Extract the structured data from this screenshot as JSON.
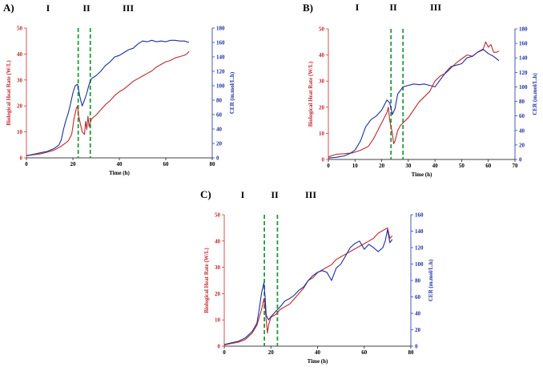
{
  "colors": {
    "heat": "#c0282d",
    "cer": "#1c2fa0",
    "phase_line": "#1f9a3a",
    "axis": "#000000"
  },
  "chart_data": [
    {
      "panel": "A)",
      "type": "line",
      "phase_labels": [
        "I",
        "II",
        "III"
      ],
      "phase_boundaries_h": [
        22.3,
        27.5
      ],
      "xlabel": "Time (h)",
      "ylabel_left": "Biological Heat Rate (W/L)",
      "ylabel_right": "CER (m.mol/L.h)",
      "xlim": [
        0,
        80
      ],
      "ylim_left": [
        0,
        50
      ],
      "ylim_right": [
        0,
        180
      ],
      "x_ticks": [
        "0",
        "20",
        "40",
        "60",
        "80"
      ],
      "y_left_ticks": [
        "0",
        "10",
        "20",
        "30",
        "40",
        "50"
      ],
      "y_right_ticks": [
        "0",
        "20",
        "40",
        "60",
        "80",
        "100",
        "120",
        "140",
        "160",
        "180"
      ],
      "series": [
        {
          "axis": "left",
          "color": "heat",
          "points": [
            [
              0,
              0.8
            ],
            [
              3,
              1.2
            ],
            [
              6,
              1.5
            ],
            [
              9,
              2.2
            ],
            [
              12,
              3.0
            ],
            [
              15,
              4.5
            ],
            [
              18,
              6.5
            ],
            [
              19.5,
              9
            ],
            [
              20.5,
              15
            ],
            [
              21.5,
              19
            ],
            [
              22,
              20
            ],
            [
              22.5,
              16
            ],
            [
              23,
              14
            ],
            [
              24,
              10
            ],
            [
              25,
              9
            ],
            [
              25.5,
              14
            ],
            [
              26,
              11
            ],
            [
              26.5,
              16
            ],
            [
              27,
              12
            ],
            [
              28,
              15
            ],
            [
              30,
              16.5
            ],
            [
              32,
              18.5
            ],
            [
              34,
              20.5
            ],
            [
              36,
              22
            ],
            [
              38,
              24
            ],
            [
              40,
              25.5
            ],
            [
              42,
              26.5
            ],
            [
              44,
              28
            ],
            [
              46,
              29.5
            ],
            [
              48,
              30.5
            ],
            [
              50,
              31.5
            ],
            [
              52,
              32.5
            ],
            [
              54,
              33.5
            ],
            [
              56,
              35
            ],
            [
              58,
              36
            ],
            [
              60,
              37
            ],
            [
              62,
              37.5
            ],
            [
              64,
              38.5
            ],
            [
              66,
              39
            ],
            [
              68,
              39.5
            ],
            [
              69,
              40
            ],
            [
              70,
              41
            ]
          ]
        },
        {
          "axis": "right",
          "color": "cer",
          "points": [
            [
              0,
              3
            ],
            [
              3,
              5
            ],
            [
              6,
              7
            ],
            [
              9,
              9
            ],
            [
              12,
              13
            ],
            [
              14,
              18
            ],
            [
              15,
              25
            ],
            [
              16,
              40
            ],
            [
              17,
              52
            ],
            [
              18,
              62
            ],
            [
              19,
              75
            ],
            [
              20,
              90
            ],
            [
              21,
              100
            ],
            [
              22,
              102
            ],
            [
              23,
              85
            ],
            [
              24,
              72
            ],
            [
              25,
              80
            ],
            [
              26,
              90
            ],
            [
              27,
              102
            ],
            [
              28,
              110
            ],
            [
              30,
              114
            ],
            [
              32,
              120
            ],
            [
              34,
              128
            ],
            [
              36,
              133
            ],
            [
              38,
              140
            ],
            [
              40,
              142
            ],
            [
              42,
              146
            ],
            [
              44,
              150
            ],
            [
              46,
              152
            ],
            [
              48,
              158
            ],
            [
              50,
              162
            ],
            [
              52,
              161
            ],
            [
              54,
              163
            ],
            [
              56,
              161
            ],
            [
              58,
              162
            ],
            [
              60,
              161
            ],
            [
              62,
              163
            ],
            [
              64,
              163
            ],
            [
              66,
              162
            ],
            [
              68,
              162
            ],
            [
              70,
              160
            ]
          ]
        }
      ]
    },
    {
      "panel": "B)",
      "type": "line",
      "phase_labels": [
        "I",
        "II",
        "III"
      ],
      "phase_boundaries_h": [
        23.5,
        28
      ],
      "xlabel": "Time (h)",
      "ylabel_left": "Biological Heat Rate (W/L)",
      "ylabel_right": "CER (m.mol/L.h)",
      "xlim": [
        0,
        70
      ],
      "ylim_left": [
        0,
        50
      ],
      "ylim_right": [
        0,
        180
      ],
      "x_ticks": [
        "0",
        "10",
        "20",
        "30",
        "40",
        "50",
        "60",
        "70"
      ],
      "y_left_ticks": [
        "0",
        "10",
        "20",
        "30",
        "40",
        "50"
      ],
      "y_right_ticks": [
        "0",
        "20",
        "40",
        "60",
        "80",
        "100",
        "120",
        "140",
        "160",
        "180"
      ],
      "series": [
        {
          "axis": "left",
          "color": "heat",
          "points": [
            [
              0,
              1
            ],
            [
              3,
              2
            ],
            [
              6,
              2.2
            ],
            [
              9,
              2.5
            ],
            [
              12,
              3.5
            ],
            [
              15,
              5
            ],
            [
              17,
              8
            ],
            [
              19,
              12
            ],
            [
              21,
              16
            ],
            [
              22,
              18
            ],
            [
              22.5,
              20
            ],
            [
              23,
              15
            ],
            [
              24,
              10
            ],
            [
              24.5,
              6
            ],
            [
              25,
              7
            ],
            [
              26,
              11
            ],
            [
              27,
              13
            ],
            [
              28,
              14
            ],
            [
              30,
              16
            ],
            [
              32,
              19
            ],
            [
              34,
              22
            ],
            [
              36,
              24
            ],
            [
              38,
              26
            ],
            [
              40,
              30
            ],
            [
              42,
              32
            ],
            [
              44,
              33
            ],
            [
              46,
              35
            ],
            [
              48,
              37
            ],
            [
              50,
              38.5
            ],
            [
              52,
              40
            ],
            [
              54,
              39.5
            ],
            [
              56,
              41
            ],
            [
              58,
              42
            ],
            [
              59,
              45
            ],
            [
              60,
              43
            ],
            [
              61,
              44
            ],
            [
              62,
              41
            ],
            [
              63,
              41
            ],
            [
              64,
              41.5
            ]
          ]
        },
        {
          "axis": "right",
          "color": "cer",
          "points": [
            [
              0,
              2
            ],
            [
              3,
              3
            ],
            [
              6,
              5
            ],
            [
              8,
              8
            ],
            [
              10,
              13
            ],
            [
              12,
              25
            ],
            [
              14,
              45
            ],
            [
              16,
              55
            ],
            [
              18,
              60
            ],
            [
              20,
              68
            ],
            [
              22,
              82
            ],
            [
              23,
              78
            ],
            [
              24,
              62
            ],
            [
              25,
              70
            ],
            [
              26,
              90
            ],
            [
              28,
              100
            ],
            [
              30,
              102
            ],
            [
              32,
              104
            ],
            [
              34,
              103
            ],
            [
              36,
              104
            ],
            [
              38,
              102
            ],
            [
              40,
              100
            ],
            [
              42,
              110
            ],
            [
              44,
              120
            ],
            [
              46,
              128
            ],
            [
              48,
              130
            ],
            [
              50,
              132
            ],
            [
              52,
              140
            ],
            [
              54,
              142
            ],
            [
              56,
              148
            ],
            [
              58,
              152
            ],
            [
              60,
              146
            ],
            [
              62,
              142
            ],
            [
              64,
              136
            ]
          ]
        }
      ]
    },
    {
      "panel": "C)",
      "type": "line",
      "phase_labels": [
        "I",
        "II",
        "III"
      ],
      "phase_boundaries_h": [
        17.2,
        22.8
      ],
      "xlabel": "Time (h)",
      "ylabel_left": "Biological Heat Rate (W/L)",
      "ylabel_right": "CER (m.mol/L.h)",
      "xlim": [
        0,
        80
      ],
      "ylim_left": [
        0,
        50
      ],
      "ylim_right": [
        0,
        160
      ],
      "x_ticks": [
        "0",
        "20",
        "40",
        "60",
        "80"
      ],
      "y_left_ticks": [
        "0",
        "10",
        "20",
        "30",
        "40",
        "50"
      ],
      "y_right_ticks": [
        "0",
        "20",
        "40",
        "60",
        "80",
        "100",
        "120",
        "140",
        "160"
      ],
      "series": [
        {
          "axis": "left",
          "color": "heat",
          "points": [
            [
              0,
              0.5
            ],
            [
              3,
              1
            ],
            [
              6,
              1.5
            ],
            [
              9,
              2.5
            ],
            [
              12,
              5
            ],
            [
              14,
              8
            ],
            [
              15,
              11
            ],
            [
              16,
              14
            ],
            [
              17,
              18
            ],
            [
              17.5,
              15
            ],
            [
              18,
              10
            ],
            [
              18.5,
              5
            ],
            [
              19,
              8
            ],
            [
              20,
              11
            ],
            [
              22,
              12
            ],
            [
              24,
              14
            ],
            [
              26,
              15
            ],
            [
              28,
              16
            ],
            [
              30,
              18
            ],
            [
              32,
              20
            ],
            [
              34,
              22
            ],
            [
              36,
              25
            ],
            [
              38,
              26
            ],
            [
              40,
              28
            ],
            [
              42,
              29
            ],
            [
              44,
              30
            ],
            [
              46,
              31
            ],
            [
              48,
              33
            ],
            [
              50,
              34
            ],
            [
              52,
              35
            ],
            [
              54,
              36
            ],
            [
              56,
              37
            ],
            [
              58,
              38
            ],
            [
              60,
              39
            ],
            [
              62,
              40
            ],
            [
              64,
              41
            ],
            [
              66,
              43
            ],
            [
              68,
              44
            ],
            [
              70,
              45
            ],
            [
              71,
              41
            ],
            [
              72,
              42
            ]
          ]
        },
        {
          "axis": "right",
          "color": "cer",
          "points": [
            [
              0,
              2
            ],
            [
              3,
              4
            ],
            [
              6,
              6
            ],
            [
              9,
              10
            ],
            [
              12,
              18
            ],
            [
              14,
              28
            ],
            [
              15,
              45
            ],
            [
              16,
              65
            ],
            [
              17,
              77
            ],
            [
              17.5,
              60
            ],
            [
              18,
              38
            ],
            [
              19,
              32
            ],
            [
              20,
              36
            ],
            [
              22,
              42
            ],
            [
              24,
              48
            ],
            [
              26,
              55
            ],
            [
              28,
              58
            ],
            [
              30,
              62
            ],
            [
              32,
              68
            ],
            [
              34,
              72
            ],
            [
              36,
              80
            ],
            [
              38,
              86
            ],
            [
              40,
              90
            ],
            [
              42,
              92
            ],
            [
              44,
              90
            ],
            [
              46,
              80
            ],
            [
              48,
              95
            ],
            [
              50,
              100
            ],
            [
              52,
              110
            ],
            [
              54,
              120
            ],
            [
              56,
              125
            ],
            [
              58,
              128
            ],
            [
              60,
              118
            ],
            [
              62,
              124
            ],
            [
              64,
              120
            ],
            [
              66,
              115
            ],
            [
              68,
              120
            ],
            [
              69,
              128
            ],
            [
              70,
              142
            ],
            [
              71,
              126
            ],
            [
              72,
              130
            ]
          ]
        }
      ]
    }
  ]
}
